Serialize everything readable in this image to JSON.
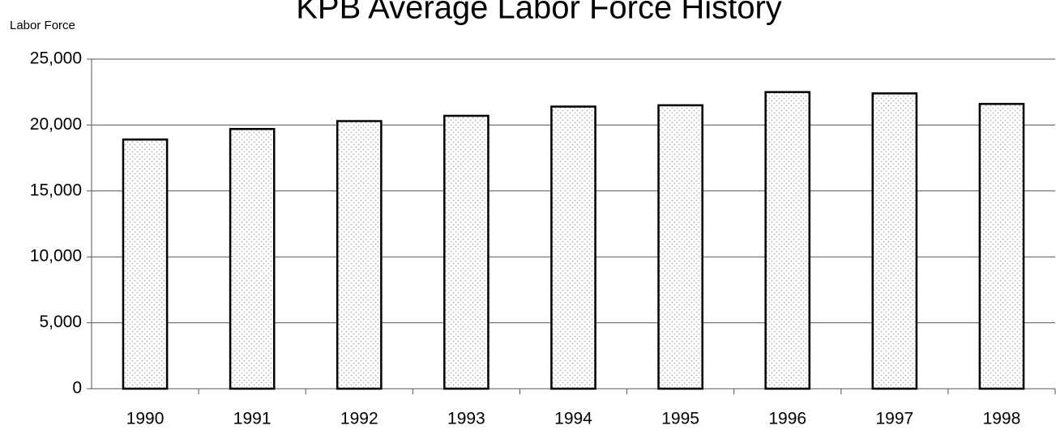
{
  "chart_data": {
    "type": "bar",
    "title": "KPB Average Labor Force History",
    "y_label": "Labor Force",
    "categories": [
      "1990",
      "1991",
      "1992",
      "1993",
      "1994",
      "1995",
      "1996",
      "1997",
      "1998"
    ],
    "values": [
      18900,
      19700,
      20300,
      20700,
      21400,
      21500,
      22500,
      22400,
      21600
    ],
    "color": "#b0b0b0",
    "ylim": [
      0,
      25000
    ],
    "yticks": [
      0,
      {
        "value": 5000,
        "label": "5,000"
      },
      {
        "value": 10000,
        "label": "10,000"
      },
      {
        "value": 15000,
        "label": "15,000"
      },
      {
        "value": 20000,
        "label": "20,000"
      },
      {
        "value": 25000,
        "label": "25,000"
      }
    ],
    "grid": true
  }
}
